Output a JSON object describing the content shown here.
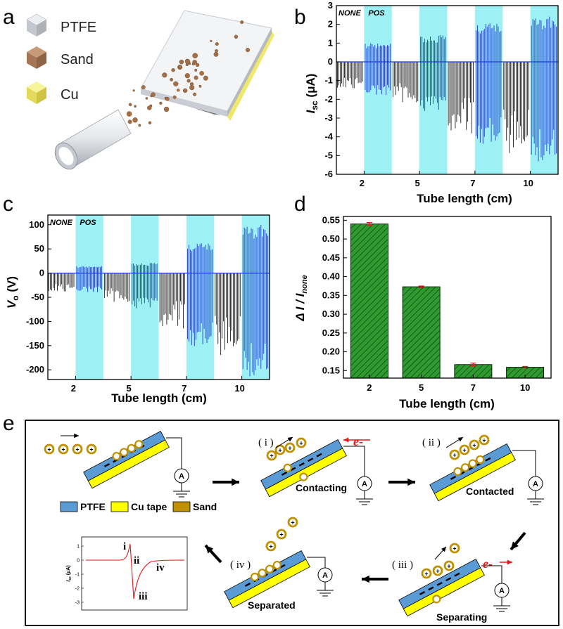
{
  "panels": {
    "a": "a",
    "b": "b",
    "c": "c",
    "d": "d",
    "e": "e"
  },
  "legend_a": [
    {
      "label": "PTFE",
      "color": "#d6d8de"
    },
    {
      "label": "Sand",
      "color": "#a97a56"
    },
    {
      "label": "Cu",
      "color": "#ece36a"
    }
  ],
  "chart_data": [
    {
      "panel": "b",
      "type": "line",
      "ylabel_main": "I",
      "ylabel_sub": "sc",
      "ylabel_unit": " (μA)",
      "xlabel": "Tube length (cm)",
      "ylim": [
        -6,
        3
      ],
      "yticks": [
        3,
        2,
        1,
        0,
        -1,
        -2,
        -3,
        -4,
        -5,
        -6
      ],
      "categories": [
        "2",
        "5",
        "7",
        "10"
      ],
      "annotations": [
        "NONE",
        "POS"
      ],
      "segments": [
        {
          "category": "2",
          "none_neg": -1.3,
          "pos_pos": 0.95,
          "pos_neg": -1.7
        },
        {
          "category": "5",
          "none_neg": -2.0,
          "pos_pos": 1.35,
          "pos_neg": -2.6
        },
        {
          "category": "7",
          "none_neg": -3.5,
          "pos_pos": 2.0,
          "pos_neg": -4.2
        },
        {
          "category": "10",
          "none_neg": -4.6,
          "pos_pos": 2.3,
          "pos_neg": -5.1
        }
      ],
      "colors": {
        "none": "#000000",
        "pos": "#1f3fd0",
        "band": "#9df0f3",
        "zero": "#1f3fd0"
      }
    },
    {
      "panel": "c",
      "type": "line",
      "ylabel_main": "V",
      "ylabel_sub": "o",
      "ylabel_unit": " (V)",
      "xlabel": "Tube length (cm)",
      "ylim": [
        -220,
        120
      ],
      "yticks": [
        100,
        50,
        0,
        -50,
        -100,
        -150,
        -200
      ],
      "categories": [
        "2",
        "5",
        "7",
        "10"
      ],
      "annotations": [
        "NONE",
        "POS"
      ],
      "segments": [
        {
          "category": "2",
          "none_neg": -35,
          "pos_pos": 14,
          "pos_neg": -38
        },
        {
          "category": "5",
          "none_neg": -55,
          "pos_pos": 20,
          "pos_neg": -72
        },
        {
          "category": "7",
          "none_neg": -105,
          "pos_pos": 60,
          "pos_neg": -145
        },
        {
          "category": "10",
          "none_neg": -160,
          "pos_pos": 95,
          "pos_neg": -205
        }
      ],
      "colors": {
        "none": "#000000",
        "pos": "#1f3fd0",
        "band": "#9df0f3",
        "zero": "#1f3fd0"
      }
    },
    {
      "panel": "d",
      "type": "bar",
      "ylabel": "Δ I / I",
      "ylabel_sub": "none",
      "xlabel": "Tube length (cm)",
      "ylim": [
        0.13,
        0.56
      ],
      "yticks": [
        "0.55",
        "0.50",
        "0.45",
        "0.40",
        "0.35",
        "0.30",
        "0.25",
        "0.20",
        "0.15"
      ],
      "categories": [
        "2",
        "5",
        "7",
        "10"
      ],
      "values": [
        0.54,
        0.373,
        0.166,
        0.159
      ],
      "errors": [
        0.004,
        0.002,
        0.004,
        0.002
      ],
      "bar_color": "#2f9a2f",
      "error_color": "#e8161b"
    }
  ],
  "panel_e": {
    "legend": [
      {
        "label": "PTFE",
        "color": "#5b9bd5"
      },
      {
        "label": "Cu tape",
        "color": "#ffff00"
      },
      {
        "label": "Sand",
        "color": "#bf9000"
      }
    ],
    "step_tags": [
      "( i )",
      "( ii )",
      "( iii )",
      "( iv )"
    ],
    "stage_labels": [
      "Contacting",
      "Contacted",
      "Separating",
      "Separated"
    ],
    "electron": "e-",
    "meter": "A",
    "inset": {
      "ylabel": "I",
      "ylabel_sub": "sc",
      "ylabel_unit": " (μA)",
      "yticks": [
        "1",
        "0",
        "-1",
        "-2",
        "-3"
      ],
      "markers": [
        "i",
        "ii",
        "iii",
        "iv"
      ]
    }
  }
}
